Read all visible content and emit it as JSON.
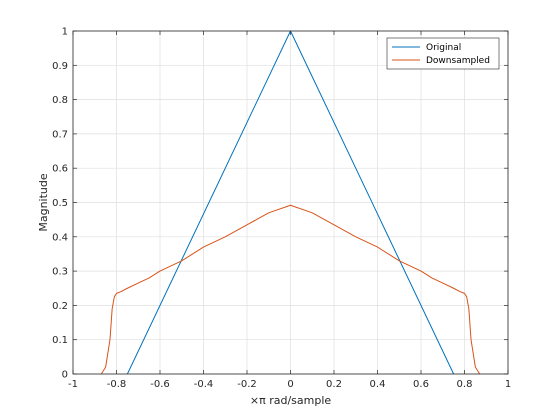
{
  "chart_data": {
    "type": "line",
    "title": "",
    "xlabel": "×π rad/sample",
    "ylabel": "Magnitude",
    "xlim": [
      -1,
      1
    ],
    "ylim": [
      0,
      1
    ],
    "xticks": [
      "-1",
      "-0.8",
      "-0.6",
      "-0.4",
      "-0.2",
      "0",
      "0.2",
      "0.4",
      "0.6",
      "0.8",
      "1"
    ],
    "yticks": [
      "0",
      "0.1",
      "0.2",
      "0.3",
      "0.4",
      "0.5",
      "0.6",
      "0.7",
      "0.8",
      "0.9",
      "1"
    ],
    "grid": true,
    "legend_position": "top-right",
    "series": [
      {
        "name": "Original",
        "color": "#0072BD",
        "x": [
          -0.75,
          0,
          0.75
        ],
        "y": [
          0,
          1,
          0
        ]
      },
      {
        "name": "Downsampled",
        "color": "#D95319",
        "x": [
          -0.87,
          -0.85,
          -0.83,
          -0.82,
          -0.81,
          -0.8,
          -0.78,
          -0.75,
          -0.7,
          -0.65,
          -0.6,
          -0.5,
          -0.4,
          -0.3,
          -0.2,
          -0.1,
          0,
          0.1,
          0.2,
          0.3,
          0.4,
          0.5,
          0.6,
          0.65,
          0.7,
          0.75,
          0.78,
          0.8,
          0.81,
          0.82,
          0.83,
          0.85,
          0.87
        ],
        "y": [
          0,
          0.02,
          0.1,
          0.19,
          0.225,
          0.235,
          0.24,
          0.25,
          0.265,
          0.28,
          0.3,
          0.33,
          0.37,
          0.4,
          0.435,
          0.47,
          0.492,
          0.47,
          0.435,
          0.4,
          0.37,
          0.33,
          0.3,
          0.28,
          0.265,
          0.25,
          0.24,
          0.235,
          0.225,
          0.19,
          0.1,
          0.02,
          0
        ]
      }
    ]
  }
}
